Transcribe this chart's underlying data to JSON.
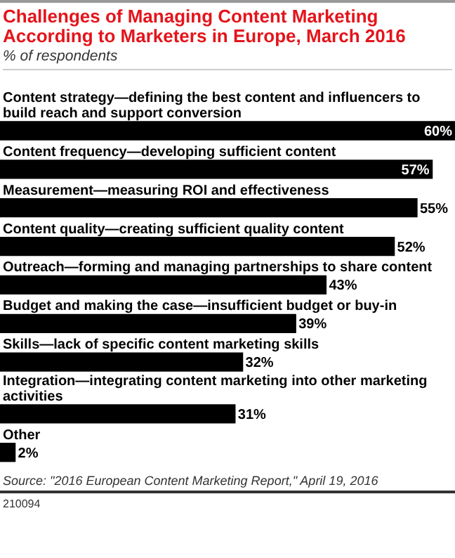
{
  "chart_data": {
    "type": "bar",
    "orientation": "horizontal",
    "title": "Challenges of Managing Content Marketing According to Marketers in Europe, March 2016",
    "subtitle": "% of respondents",
    "categories": [
      "Content strategy—defining the best content and influencers to build reach and support conversion",
      "Content frequency—developing sufficient content",
      "Measurement—measuring ROI and effectiveness",
      "Content quality—creating sufficient quality content",
      "Outreach—forming and managing partnerships to share content",
      "Budget and making the case—insufficient budget or buy-in",
      "Skills—lack of specific content marketing skills",
      "Integration—integrating content marketing into other marketing activities",
      "Other"
    ],
    "values": [
      60,
      57,
      55,
      52,
      43,
      39,
      32,
      31,
      2
    ],
    "value_labels": [
      "60%",
      "57%",
      "55%",
      "52%",
      "43%",
      "39%",
      "32%",
      "31%",
      "2%"
    ],
    "color": "#000000",
    "annotations": [
      "Source: \"2016 European Content Marketing Report,\" April 19, 2016",
      "210094"
    ],
    "legend": false
  }
}
